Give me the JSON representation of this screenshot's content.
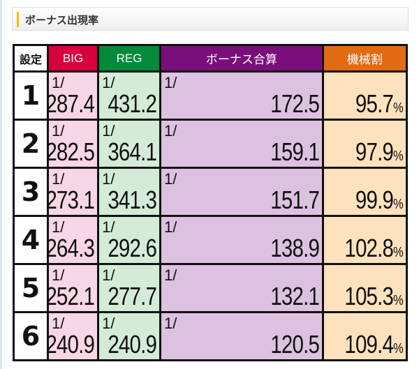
{
  "heading": "ボーナス出現率",
  "headers": {
    "setting": "設定",
    "big": "BIG",
    "reg": "REG",
    "bonus": "ボーナス合算",
    "rate": "機械割"
  },
  "fraction_prefix": "1/",
  "percent": "%",
  "rows": [
    {
      "setting": "1",
      "big": "287.4",
      "reg": "431.2",
      "bonus": "172.5",
      "rate": "95.7"
    },
    {
      "setting": "2",
      "big": "282.5",
      "reg": "364.1",
      "bonus": "159.1",
      "rate": "97.9"
    },
    {
      "setting": "3",
      "big": "273.1",
      "reg": "341.3",
      "bonus": "151.7",
      "rate": "99.9"
    },
    {
      "setting": "4",
      "big": "264.3",
      "reg": "292.6",
      "bonus": "138.9",
      "rate": "102.8"
    },
    {
      "setting": "5",
      "big": "252.1",
      "reg": "277.7",
      "bonus": "132.1",
      "rate": "105.3"
    },
    {
      "setting": "6",
      "big": "240.9",
      "reg": "240.9",
      "bonus": "120.5",
      "rate": "109.4"
    }
  ]
}
